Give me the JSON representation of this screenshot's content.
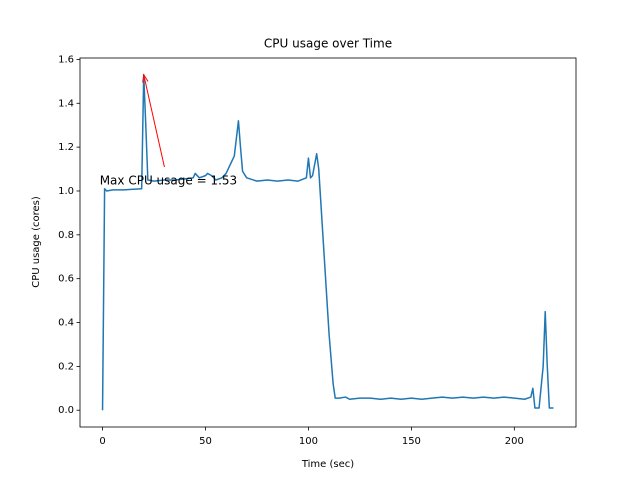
{
  "chart_data": {
    "type": "line",
    "title": "CPU usage over Time",
    "x_label": "Time (sec)",
    "y_label": "CPU usage (cores)",
    "x": [
      0,
      1,
      2,
      5,
      10,
      15,
      19,
      20,
      21,
      22,
      25,
      30,
      35,
      40,
      44,
      45,
      47,
      50,
      51,
      53,
      55,
      58,
      60,
      62,
      64,
      66,
      67,
      68,
      70,
      75,
      80,
      85,
      90,
      95,
      99,
      100,
      101,
      102,
      104,
      105,
      107,
      110,
      112,
      113,
      115,
      118,
      120,
      125,
      130,
      135,
      140,
      145,
      150,
      155,
      160,
      165,
      170,
      175,
      180,
      185,
      190,
      195,
      200,
      205,
      208,
      209,
      210,
      212,
      214,
      215,
      216,
      217,
      219
    ],
    "series": [
      {
        "name": "CPU usage",
        "color": "#1f77b4",
        "values": [
          0,
          1.01,
          1.0,
          1.005,
          1.005,
          1.008,
          1.01,
          1.53,
          1.3,
          1.05,
          1.045,
          1.05,
          1.05,
          1.055,
          1.06,
          1.08,
          1.06,
          1.07,
          1.08,
          1.07,
          1.05,
          1.06,
          1.08,
          1.12,
          1.16,
          1.32,
          1.2,
          1.09,
          1.06,
          1.045,
          1.05,
          1.045,
          1.05,
          1.045,
          1.06,
          1.15,
          1.06,
          1.07,
          1.17,
          1.1,
          0.8,
          0.35,
          0.12,
          0.055,
          0.055,
          0.06,
          0.05,
          0.055,
          0.055,
          0.05,
          0.055,
          0.05,
          0.055,
          0.05,
          0.055,
          0.06,
          0.055,
          0.06,
          0.055,
          0.06,
          0.055,
          0.06,
          0.055,
          0.05,
          0.06,
          0.1,
          0.01,
          0.01,
          0.2,
          0.45,
          0.2,
          0.01,
          0.01
        ]
      }
    ],
    "xlim": [
      -10.95,
      229.95
    ],
    "ylim": [
      -0.0765,
      1.6065
    ],
    "xticks": [
      0,
      50,
      100,
      150,
      200
    ],
    "yticks": [
      {
        "value": 0,
        "label": "0.0"
      },
      0.2,
      0.4,
      0.6,
      0.8,
      {
        "value": 1,
        "label": "1.0"
      },
      1.2,
      1.4,
      1.6
    ],
    "annotation": {
      "text": "Max CPU usage = 1.53",
      "color": "#ff0000",
      "xy": [
        20,
        1.53
      ],
      "xytext": [
        32,
        1.05
      ]
    }
  }
}
